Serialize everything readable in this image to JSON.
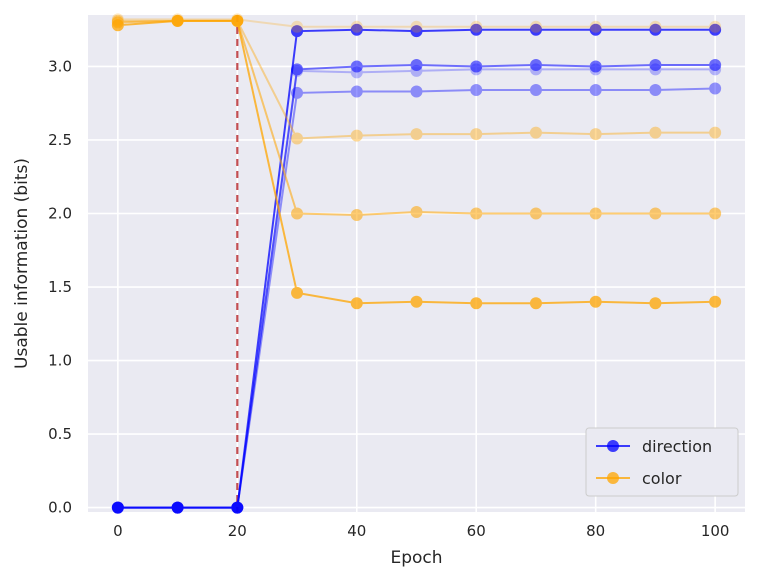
{
  "chart_data": {
    "type": "line",
    "xlabel": "Epoch",
    "ylabel": "Usable information (bits)",
    "xlim": [
      -5,
      105
    ],
    "ylim": [
      -0.03,
      3.35
    ],
    "x_ticks": [
      0,
      20,
      40,
      60,
      80,
      100
    ],
    "y_ticks": [
      0.0,
      0.5,
      1.0,
      1.5,
      2.0,
      2.5,
      3.0
    ],
    "x_tick_labels": [
      "0",
      "20",
      "40",
      "60",
      "80",
      "100"
    ],
    "y_tick_labels": [
      "0.0",
      "0.5",
      "1.0",
      "1.5",
      "2.0",
      "2.5",
      "3.0"
    ],
    "grid": true,
    "legend_position": "bottom-right",
    "vline": {
      "x": 20,
      "color": "#c44e52",
      "style": "dashed"
    },
    "x": [
      0,
      10,
      20,
      30,
      40,
      50,
      60,
      70,
      80,
      90,
      100
    ],
    "legend": [
      {
        "label": "direction",
        "color": "#0000ff"
      },
      {
        "label": "color",
        "color": "#ffa500"
      }
    ],
    "series": [
      {
        "group": "direction",
        "color": "#0000ff",
        "opacity": 0.25,
        "values": [
          0,
          0,
          0,
          2.97,
          2.96,
          2.97,
          2.98,
          2.98,
          2.98,
          2.98,
          2.98
        ]
      },
      {
        "group": "direction",
        "color": "#0000ff",
        "opacity": 0.4,
        "values": [
          0,
          0,
          0,
          2.82,
          2.83,
          2.83,
          2.84,
          2.84,
          2.84,
          2.84,
          2.85
        ]
      },
      {
        "group": "direction",
        "color": "#0000ff",
        "opacity": 0.55,
        "values": [
          0,
          0,
          0,
          2.98,
          3.0,
          3.01,
          3.0,
          3.01,
          3.0,
          3.01,
          3.01
        ]
      },
      {
        "group": "direction",
        "color": "#0000ff",
        "opacity": 0.75,
        "values": [
          0,
          0,
          0,
          3.24,
          3.25,
          3.24,
          3.25,
          3.25,
          3.25,
          3.25,
          3.25
        ]
      },
      {
        "group": "color",
        "color": "#ffa500",
        "opacity": 0.25,
        "values": [
          3.32,
          3.32,
          3.32,
          3.27,
          3.27,
          3.27,
          3.27,
          3.27,
          3.27,
          3.27,
          3.27
        ]
      },
      {
        "group": "color",
        "color": "#ffa500",
        "opacity": 0.4,
        "values": [
          3.31,
          3.31,
          3.31,
          2.51,
          2.53,
          2.54,
          2.54,
          2.55,
          2.54,
          2.55,
          2.55
        ]
      },
      {
        "group": "color",
        "color": "#ffa500",
        "opacity": 0.55,
        "values": [
          3.3,
          3.31,
          3.31,
          2.0,
          1.99,
          2.01,
          2.0,
          2.0,
          2.0,
          2.0,
          2.0
        ]
      },
      {
        "group": "color",
        "color": "#ffa500",
        "opacity": 0.75,
        "values": [
          3.28,
          3.31,
          3.31,
          1.46,
          1.39,
          1.4,
          1.39,
          1.39,
          1.4,
          1.39,
          1.4
        ]
      }
    ]
  }
}
